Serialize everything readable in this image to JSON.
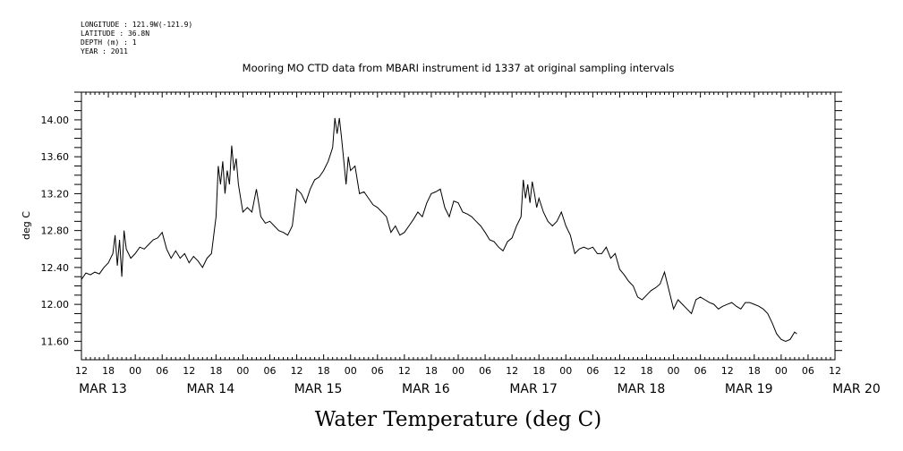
{
  "meta_lines": [
    "LONGITUDE : 121.9W(-121.9)",
    "LATITUDE : 36.8N",
    "DEPTH (m) : 1",
    "YEAR : 2011"
  ],
  "chart_data": {
    "type": "line",
    "title": "Mooring MO CTD data from MBARI instrument id 1337 at original sampling intervals",
    "ylabel": "deg C",
    "xlabel": "Water Temperature (deg C)",
    "ylim": [
      11.4,
      14.3
    ],
    "yticks": [
      "14.00",
      "13.60",
      "13.20",
      "12.80",
      "12.40",
      "12.00",
      "11.60"
    ],
    "x_units": "hours since 12:00 MAR 13 2011",
    "xlim": [
      0,
      168
    ],
    "x_hour_labels": [
      "12",
      "18",
      "00",
      "06",
      "12",
      "18",
      "00",
      "06",
      "12",
      "18",
      "00",
      "06",
      "12",
      "18",
      "00",
      "06",
      "12",
      "18",
      "00",
      "06",
      "12",
      "18",
      "00",
      "06",
      "12",
      "18",
      "00",
      "06",
      "12"
    ],
    "x_day_labels": [
      {
        "label": "MAR 13",
        "at": 0
      },
      {
        "label": "MAR 14",
        "at": 24
      },
      {
        "label": "MAR 15",
        "at": 48
      },
      {
        "label": "MAR 16",
        "at": 72
      },
      {
        "label": "MAR 17",
        "at": 96
      },
      {
        "label": "MAR 18",
        "at": 120
      },
      {
        "label": "MAR 19",
        "at": 144
      },
      {
        "label": "MAR 20",
        "at": 168
      }
    ],
    "grid": false,
    "series": [
      {
        "color": "#000000",
        "points": [
          [
            0,
            12.27
          ],
          [
            1,
            12.34
          ],
          [
            2,
            12.32
          ],
          [
            3,
            12.35
          ],
          [
            4,
            12.33
          ],
          [
            5,
            12.4
          ],
          [
            6,
            12.45
          ],
          [
            7,
            12.55
          ],
          [
            7.5,
            12.75
          ],
          [
            8,
            12.42
          ],
          [
            8.5,
            12.7
          ],
          [
            9,
            12.3
          ],
          [
            9.5,
            12.8
          ],
          [
            10,
            12.6
          ],
          [
            10.5,
            12.55
          ],
          [
            11,
            12.5
          ],
          [
            12,
            12.55
          ],
          [
            13,
            12.62
          ],
          [
            14,
            12.6
          ],
          [
            15,
            12.65
          ],
          [
            16,
            12.7
          ],
          [
            17,
            12.72
          ],
          [
            18,
            12.78
          ],
          [
            19,
            12.6
          ],
          [
            20,
            12.5
          ],
          [
            21,
            12.58
          ],
          [
            22,
            12.5
          ],
          [
            23,
            12.55
          ],
          [
            24,
            12.45
          ],
          [
            25,
            12.52
          ],
          [
            26,
            12.47
          ],
          [
            27,
            12.4
          ],
          [
            28,
            12.5
          ],
          [
            29,
            12.55
          ],
          [
            30,
            12.95
          ],
          [
            30.5,
            13.5
          ],
          [
            31,
            13.3
          ],
          [
            31.5,
            13.55
          ],
          [
            32,
            13.2
          ],
          [
            32.5,
            13.45
          ],
          [
            33,
            13.3
          ],
          [
            33.5,
            13.72
          ],
          [
            34,
            13.45
          ],
          [
            34.5,
            13.58
          ],
          [
            35,
            13.3
          ],
          [
            35.5,
            13.15
          ],
          [
            36,
            13.0
          ],
          [
            37,
            13.05
          ],
          [
            38,
            13.0
          ],
          [
            39,
            13.25
          ],
          [
            39.5,
            13.1
          ],
          [
            40,
            12.95
          ],
          [
            41,
            12.88
          ],
          [
            42,
            12.9
          ],
          [
            43,
            12.85
          ],
          [
            44,
            12.8
          ],
          [
            45,
            12.78
          ],
          [
            46,
            12.75
          ],
          [
            47,
            12.85
          ],
          [
            48,
            13.25
          ],
          [
            49,
            13.2
          ],
          [
            50,
            13.1
          ],
          [
            51,
            13.25
          ],
          [
            52,
            13.35
          ],
          [
            53,
            13.38
          ],
          [
            54,
            13.45
          ],
          [
            55,
            13.55
          ],
          [
            56,
            13.7
          ],
          [
            56.5,
            14.02
          ],
          [
            57,
            13.85
          ],
          [
            57.5,
            14.02
          ],
          [
            58,
            13.8
          ],
          [
            58.5,
            13.55
          ],
          [
            59,
            13.3
          ],
          [
            59.5,
            13.6
          ],
          [
            60,
            13.45
          ],
          [
            61,
            13.5
          ],
          [
            62,
            13.2
          ],
          [
            63,
            13.22
          ],
          [
            64,
            13.15
          ],
          [
            65,
            13.08
          ],
          [
            66,
            13.05
          ],
          [
            67,
            13.0
          ],
          [
            68,
            12.95
          ],
          [
            69,
            12.78
          ],
          [
            70,
            12.85
          ],
          [
            71,
            12.75
          ],
          [
            72,
            12.78
          ],
          [
            73,
            12.85
          ],
          [
            74,
            12.92
          ],
          [
            75,
            13.0
          ],
          [
            76,
            12.95
          ],
          [
            77,
            13.1
          ],
          [
            78,
            13.2
          ],
          [
            79,
            13.22
          ],
          [
            80,
            13.25
          ],
          [
            81,
            13.05
          ],
          [
            82,
            12.95
          ],
          [
            83,
            13.12
          ],
          [
            84,
            13.1
          ],
          [
            85,
            13.0
          ],
          [
            86,
            12.98
          ],
          [
            87,
            12.95
          ],
          [
            88,
            12.9
          ],
          [
            89,
            12.85
          ],
          [
            90,
            12.78
          ],
          [
            91,
            12.7
          ],
          [
            92,
            12.68
          ],
          [
            93,
            12.62
          ],
          [
            94,
            12.58
          ],
          [
            95,
            12.68
          ],
          [
            96,
            12.72
          ],
          [
            97,
            12.85
          ],
          [
            98,
            12.95
          ],
          [
            98.5,
            13.35
          ],
          [
            99,
            13.15
          ],
          [
            99.5,
            13.3
          ],
          [
            100,
            13.1
          ],
          [
            100.5,
            13.33
          ],
          [
            101,
            13.2
          ],
          [
            101.5,
            13.05
          ],
          [
            102,
            13.15
          ],
          [
            103,
            13.0
          ],
          [
            104,
            12.9
          ],
          [
            105,
            12.85
          ],
          [
            106,
            12.9
          ],
          [
            107,
            13.0
          ],
          [
            108,
            12.85
          ],
          [
            109,
            12.75
          ],
          [
            110,
            12.55
          ],
          [
            111,
            12.6
          ],
          [
            112,
            12.62
          ],
          [
            113,
            12.6
          ],
          [
            114,
            12.62
          ],
          [
            115,
            12.55
          ],
          [
            116,
            12.55
          ],
          [
            117,
            12.62
          ],
          [
            118,
            12.5
          ],
          [
            119,
            12.55
          ],
          [
            120,
            12.38
          ],
          [
            121,
            12.32
          ],
          [
            122,
            12.25
          ],
          [
            123,
            12.2
          ],
          [
            124,
            12.08
          ],
          [
            125,
            12.05
          ],
          [
            126,
            12.1
          ],
          [
            127,
            12.15
          ],
          [
            128,
            12.18
          ],
          [
            129,
            12.22
          ],
          [
            130,
            12.35
          ],
          [
            131,
            12.15
          ],
          [
            132,
            11.95
          ],
          [
            133,
            12.05
          ],
          [
            134,
            12.0
          ],
          [
            135,
            11.95
          ],
          [
            136,
            11.9
          ],
          [
            137,
            12.05
          ],
          [
            138,
            12.08
          ],
          [
            139,
            12.05
          ],
          [
            140,
            12.02
          ],
          [
            141,
            12.0
          ],
          [
            142,
            11.95
          ],
          [
            143,
            11.98
          ],
          [
            144,
            12.0
          ],
          [
            145,
            12.02
          ],
          [
            146,
            11.98
          ],
          [
            147,
            11.95
          ],
          [
            148,
            12.02
          ],
          [
            149,
            12.02
          ],
          [
            150,
            12.0
          ],
          [
            151,
            11.98
          ],
          [
            152,
            11.95
          ],
          [
            153,
            11.9
          ],
          [
            154,
            11.8
          ],
          [
            155,
            11.68
          ],
          [
            156,
            11.62
          ],
          [
            157,
            11.6
          ],
          [
            158,
            11.62
          ],
          [
            159,
            11.7
          ],
          [
            159.5,
            11.68
          ]
        ]
      }
    ]
  }
}
